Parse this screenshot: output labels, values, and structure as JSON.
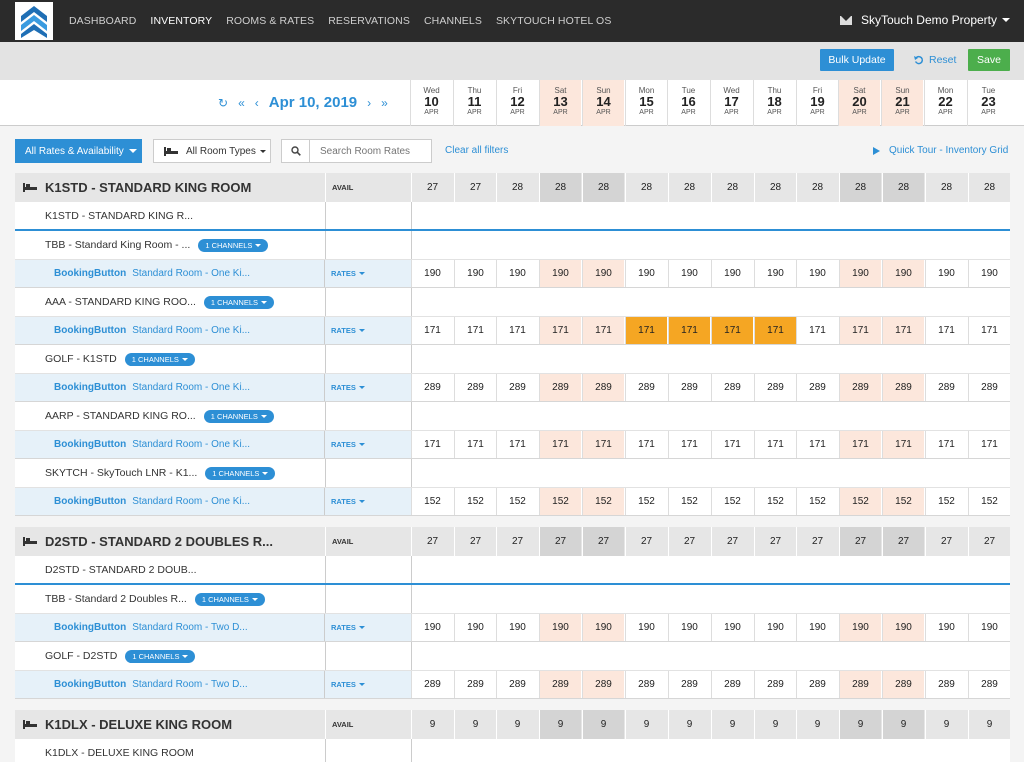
{
  "nav": {
    "items": [
      "DASHBOARD",
      "INVENTORY",
      "ROOMS & RATES",
      "RESERVATIONS",
      "CHANNELS",
      "SKYTOUCH HOTEL OS"
    ],
    "active": "INVENTORY",
    "property": "SkyTouch Demo Property"
  },
  "actions": {
    "bulk_update": "Bulk Update",
    "reset": "Reset",
    "save": "Save"
  },
  "datenav": {
    "current": "Apr 10, 2019"
  },
  "days": [
    {
      "dow": "Wed",
      "num": "10",
      "mon": "APR",
      "weekend": false
    },
    {
      "dow": "Thu",
      "num": "11",
      "mon": "APR",
      "weekend": false
    },
    {
      "dow": "Fri",
      "num": "12",
      "mon": "APR",
      "weekend": false
    },
    {
      "dow": "Sat",
      "num": "13",
      "mon": "APR",
      "weekend": true
    },
    {
      "dow": "Sun",
      "num": "14",
      "mon": "APR",
      "weekend": true
    },
    {
      "dow": "Mon",
      "num": "15",
      "mon": "APR",
      "weekend": false
    },
    {
      "dow": "Tue",
      "num": "16",
      "mon": "APR",
      "weekend": false
    },
    {
      "dow": "Wed",
      "num": "17",
      "mon": "APR",
      "weekend": false
    },
    {
      "dow": "Thu",
      "num": "18",
      "mon": "APR",
      "weekend": false
    },
    {
      "dow": "Fri",
      "num": "19",
      "mon": "APR",
      "weekend": false
    },
    {
      "dow": "Sat",
      "num": "20",
      "mon": "APR",
      "weekend": true
    },
    {
      "dow": "Sun",
      "num": "21",
      "mon": "APR",
      "weekend": true
    },
    {
      "dow": "Mon",
      "num": "22",
      "mon": "APR",
      "weekend": false
    },
    {
      "dow": "Tue",
      "num": "23",
      "mon": "APR",
      "weekend": false
    }
  ],
  "filters": {
    "all_rates": "All Rates & Availability",
    "room_types": "All Room Types",
    "search_placeholder": "Search Room Rates",
    "clear": "Clear all filters",
    "quick_tour": "Quick Tour - Inventory Grid"
  },
  "labels": {
    "avail": "AVAIL",
    "rates": "RATES",
    "channels": "1 CHANNELS"
  },
  "colors": {
    "accent": "#2d8fd5",
    "save": "#4cae4c",
    "highlight": "#f5a623",
    "weekend": "#fce7dc"
  },
  "rows": [
    {
      "kind": "room",
      "title": "K1STD - STANDARD KING ROOM",
      "values": [
        "27",
        "27",
        "28",
        "28",
        "28",
        "28",
        "28",
        "28",
        "28",
        "28",
        "28",
        "28",
        "28",
        "28"
      ]
    },
    {
      "kind": "plain",
      "name": "K1STD - STANDARD KING R...",
      "chip": false,
      "blueline": true
    },
    {
      "kind": "plain",
      "name": "TBB - Standard King Room - ...",
      "chip": true
    },
    {
      "kind": "rate",
      "channel": "BookingButton",
      "desc": "Standard Room - One Ki...",
      "values": [
        "190",
        "190",
        "190",
        "190",
        "190",
        "190",
        "190",
        "190",
        "190",
        "190",
        "190",
        "190",
        "190",
        "190"
      ],
      "highlight": []
    },
    {
      "kind": "plain",
      "name": "AAA - STANDARD KING ROO...",
      "chip": true
    },
    {
      "kind": "rate",
      "channel": "BookingButton",
      "desc": "Standard Room - One Ki...",
      "values": [
        "171",
        "171",
        "171",
        "171",
        "171",
        "171",
        "171",
        "171",
        "171",
        "171",
        "171",
        "171",
        "171",
        "171"
      ],
      "highlight": [
        5,
        6,
        7,
        8
      ]
    },
    {
      "kind": "plain",
      "name": "GOLF - K1STD",
      "chip": true
    },
    {
      "kind": "rate",
      "channel": "BookingButton",
      "desc": "Standard Room - One Ki...",
      "values": [
        "289",
        "289",
        "289",
        "289",
        "289",
        "289",
        "289",
        "289",
        "289",
        "289",
        "289",
        "289",
        "289",
        "289"
      ],
      "highlight": []
    },
    {
      "kind": "plain",
      "name": "AARP - STANDARD KING RO...",
      "chip": true
    },
    {
      "kind": "rate",
      "channel": "BookingButton",
      "desc": "Standard Room - One Ki...",
      "values": [
        "171",
        "171",
        "171",
        "171",
        "171",
        "171",
        "171",
        "171",
        "171",
        "171",
        "171",
        "171",
        "171",
        "171"
      ],
      "highlight": []
    },
    {
      "kind": "plain",
      "name": "SKYTCH - SkyTouch LNR - K1...",
      "chip": true
    },
    {
      "kind": "rate",
      "channel": "BookingButton",
      "desc": "Standard Room - One Ki...",
      "values": [
        "152",
        "152",
        "152",
        "152",
        "152",
        "152",
        "152",
        "152",
        "152",
        "152",
        "152",
        "152",
        "152",
        "152"
      ],
      "highlight": []
    },
    {
      "kind": "room",
      "title": "D2STD - STANDARD 2 DOUBLES R...",
      "values": [
        "27",
        "27",
        "27",
        "27",
        "27",
        "27",
        "27",
        "27",
        "27",
        "27",
        "27",
        "27",
        "27",
        "27"
      ]
    },
    {
      "kind": "plain",
      "name": "D2STD - STANDARD 2 DOUB...",
      "chip": false,
      "blueline": true
    },
    {
      "kind": "plain",
      "name": "TBB - Standard 2 Doubles R...",
      "chip": true
    },
    {
      "kind": "rate",
      "channel": "BookingButton",
      "desc": "Standard Room - Two D...",
      "values": [
        "190",
        "190",
        "190",
        "190",
        "190",
        "190",
        "190",
        "190",
        "190",
        "190",
        "190",
        "190",
        "190",
        "190"
      ],
      "highlight": []
    },
    {
      "kind": "plain",
      "name": "GOLF - D2STD",
      "chip": true
    },
    {
      "kind": "rate",
      "channel": "BookingButton",
      "desc": "Standard Room - Two D...",
      "values": [
        "289",
        "289",
        "289",
        "289",
        "289",
        "289",
        "289",
        "289",
        "289",
        "289",
        "289",
        "289",
        "289",
        "289"
      ],
      "highlight": []
    },
    {
      "kind": "room",
      "title": "K1DLX - DELUXE KING ROOM",
      "values": [
        "9",
        "9",
        "9",
        "9",
        "9",
        "9",
        "9",
        "9",
        "9",
        "9",
        "9",
        "9",
        "9",
        "9"
      ]
    },
    {
      "kind": "plain",
      "name": "K1DLX - DELUXE KING ROOM",
      "chip": false,
      "blueline": false
    }
  ]
}
